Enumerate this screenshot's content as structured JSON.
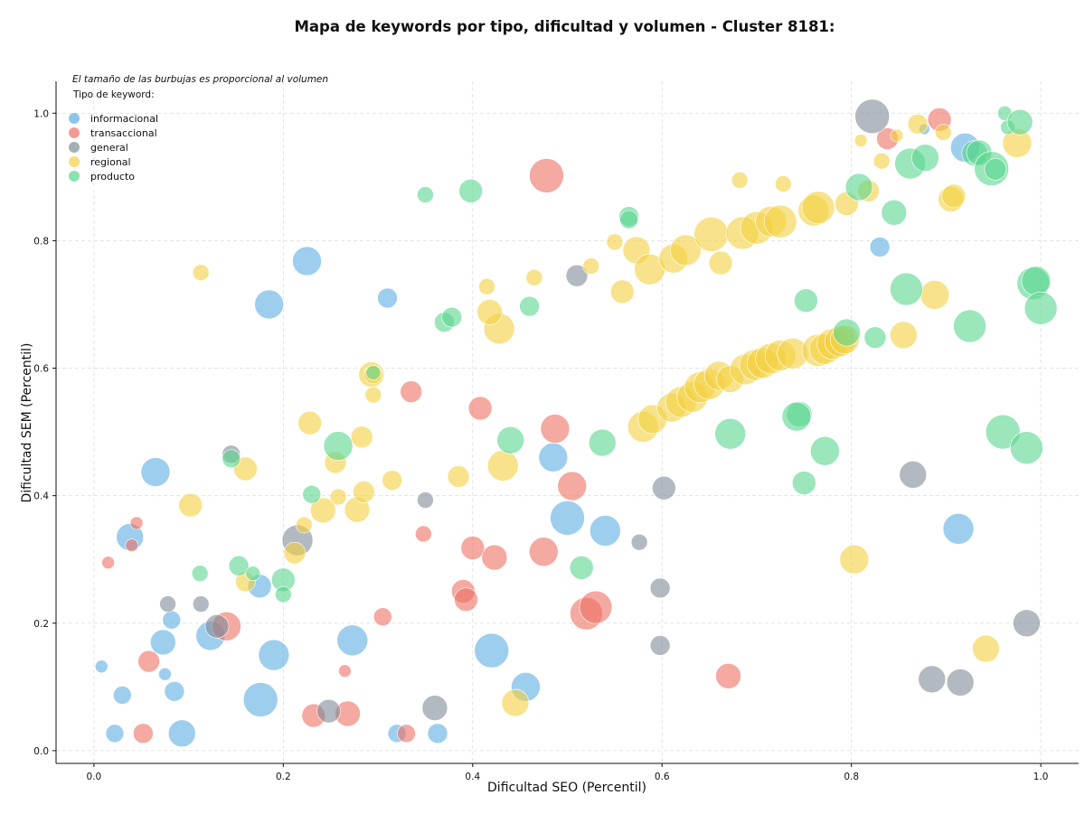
{
  "chart_data": {
    "type": "scatter",
    "title": "Mapa de keywords por tipo, dificultad y volumen - Cluster 8181:",
    "xlabel": "Dificultad SEO (Percentil)",
    "ylabel": "Dificultad SEM (Percentil)",
    "xlim": [
      -0.04,
      1.04
    ],
    "ylim": [
      -0.02,
      1.05
    ],
    "xticks": [
      0.0,
      0.2,
      0.4,
      0.6,
      0.8,
      1.0
    ],
    "xtick_labels": [
      "0.0",
      "0.2",
      "0.4",
      "0.6",
      "0.8",
      "1.0"
    ],
    "yticks": [
      0.0,
      0.2,
      0.4,
      0.6,
      0.8,
      1.0
    ],
    "ytick_labels": [
      "0.0",
      "0.2",
      "0.4",
      "0.6",
      "0.8",
      "1.0"
    ],
    "grid": true,
    "size_note": "El tamaño de las burbujas es proporcional al volumen",
    "legend_title": "Tipo de keyword:",
    "legend_position": "top-left",
    "series": [
      {
        "name": "informacional",
        "color": "#5DADE2",
        "points": [
          [
            0.225,
            0.768,
            16
          ],
          [
            0.185,
            0.7,
            16
          ],
          [
            0.31,
            0.71,
            11
          ],
          [
            0.065,
            0.437,
            16
          ],
          [
            0.038,
            0.335,
            15
          ],
          [
            0.175,
            0.258,
            13
          ],
          [
            0.073,
            0.17,
            14
          ],
          [
            0.082,
            0.205,
            10
          ],
          [
            0.123,
            0.18,
            16
          ],
          [
            0.075,
            0.12,
            7
          ],
          [
            0.085,
            0.093,
            11
          ],
          [
            0.03,
            0.087,
            10
          ],
          [
            0.008,
            0.132,
            7
          ],
          [
            0.022,
            0.027,
            10
          ],
          [
            0.093,
            0.027,
            15
          ],
          [
            0.176,
            0.08,
            19
          ],
          [
            0.19,
            0.15,
            17
          ],
          [
            0.273,
            0.173,
            17
          ],
          [
            0.32,
            0.027,
            10
          ],
          [
            0.363,
            0.027,
            11
          ],
          [
            0.485,
            0.46,
            16
          ],
          [
            0.5,
            0.365,
            19
          ],
          [
            0.54,
            0.345,
            17
          ],
          [
            0.42,
            0.157,
            19
          ],
          [
            0.456,
            0.1,
            16
          ],
          [
            0.83,
            0.79,
            11
          ],
          [
            0.913,
            0.348,
            17
          ],
          [
            0.92,
            0.946,
            16
          ],
          [
            0.877,
            0.975,
            6
          ]
        ]
      },
      {
        "name": "transaccional",
        "color": "#EC7063",
        "points": [
          [
            0.478,
            0.902,
            19
          ],
          [
            0.335,
            0.563,
            12
          ],
          [
            0.408,
            0.537,
            13
          ],
          [
            0.487,
            0.505,
            16
          ],
          [
            0.505,
            0.415,
            16
          ],
          [
            0.045,
            0.357,
            7
          ],
          [
            0.04,
            0.322,
            7
          ],
          [
            0.015,
            0.295,
            7
          ],
          [
            0.14,
            0.195,
            16
          ],
          [
            0.058,
            0.14,
            12
          ],
          [
            0.052,
            0.027,
            11
          ],
          [
            0.232,
            0.055,
            13
          ],
          [
            0.268,
            0.058,
            14
          ],
          [
            0.265,
            0.125,
            7
          ],
          [
            0.305,
            0.21,
            10
          ],
          [
            0.348,
            0.34,
            9
          ],
          [
            0.4,
            0.318,
            13
          ],
          [
            0.423,
            0.303,
            14
          ],
          [
            0.475,
            0.312,
            16
          ],
          [
            0.39,
            0.25,
            13
          ],
          [
            0.393,
            0.237,
            13
          ],
          [
            0.52,
            0.215,
            18
          ],
          [
            0.53,
            0.225,
            18
          ],
          [
            0.67,
            0.117,
            14
          ],
          [
            0.33,
            0.027,
            10
          ],
          [
            0.838,
            0.96,
            12
          ],
          [
            0.893,
            0.99,
            13
          ]
        ]
      },
      {
        "name": "general",
        "color": "#808B96",
        "points": [
          [
            0.822,
            0.995,
            19
          ],
          [
            0.51,
            0.745,
            12
          ],
          [
            0.145,
            0.465,
            10
          ],
          [
            0.35,
            0.393,
            9
          ],
          [
            0.078,
            0.23,
            9
          ],
          [
            0.113,
            0.23,
            9
          ],
          [
            0.215,
            0.33,
            17
          ],
          [
            0.13,
            0.195,
            13
          ],
          [
            0.248,
            0.062,
            13
          ],
          [
            0.36,
            0.067,
            14
          ],
          [
            0.576,
            0.327,
            9
          ],
          [
            0.602,
            0.412,
            13
          ],
          [
            0.598,
            0.255,
            11
          ],
          [
            0.598,
            0.165,
            11
          ],
          [
            0.865,
            0.433,
            15
          ],
          [
            0.985,
            0.2,
            15
          ],
          [
            0.885,
            0.112,
            15
          ],
          [
            0.915,
            0.107,
            15
          ]
        ]
      },
      {
        "name": "regional",
        "color": "#F4D03F",
        "points": [
          [
            0.113,
            0.75,
            9
          ],
          [
            0.102,
            0.385,
            13
          ],
          [
            0.16,
            0.442,
            13
          ],
          [
            0.228,
            0.514,
            13
          ],
          [
            0.293,
            0.59,
            14
          ],
          [
            0.295,
            0.558,
            9
          ],
          [
            0.283,
            0.492,
            12
          ],
          [
            0.255,
            0.452,
            12
          ],
          [
            0.258,
            0.398,
            9
          ],
          [
            0.242,
            0.377,
            14
          ],
          [
            0.222,
            0.354,
            9
          ],
          [
            0.212,
            0.31,
            12
          ],
          [
            0.278,
            0.378,
            14
          ],
          [
            0.285,
            0.406,
            12
          ],
          [
            0.315,
            0.424,
            11
          ],
          [
            0.16,
            0.265,
            11
          ],
          [
            0.385,
            0.43,
            12
          ],
          [
            0.432,
            0.447,
            17
          ],
          [
            0.428,
            0.662,
            17
          ],
          [
            0.415,
            0.728,
            9
          ],
          [
            0.418,
            0.688,
            14
          ],
          [
            0.465,
            0.742,
            9
          ],
          [
            0.525,
            0.76,
            9
          ],
          [
            0.55,
            0.798,
            9
          ],
          [
            0.558,
            0.72,
            13
          ],
          [
            0.573,
            0.785,
            15
          ],
          [
            0.587,
            0.755,
            17
          ],
          [
            0.612,
            0.772,
            16
          ],
          [
            0.625,
            0.785,
            17
          ],
          [
            0.652,
            0.81,
            19
          ],
          [
            0.662,
            0.765,
            13
          ],
          [
            0.682,
            0.895,
            9
          ],
          [
            0.685,
            0.812,
            18
          ],
          [
            0.7,
            0.82,
            18
          ],
          [
            0.715,
            0.83,
            17
          ],
          [
            0.725,
            0.83,
            18
          ],
          [
            0.728,
            0.889,
            9
          ],
          [
            0.76,
            0.847,
            17
          ],
          [
            0.765,
            0.852,
            18
          ],
          [
            0.795,
            0.858,
            13
          ],
          [
            0.818,
            0.878,
            12
          ],
          [
            0.81,
            0.957,
            7
          ],
          [
            0.832,
            0.925,
            9
          ],
          [
            0.848,
            0.965,
            7
          ],
          [
            0.87,
            0.983,
            11
          ],
          [
            0.897,
            0.97,
            9
          ],
          [
            0.905,
            0.865,
            14
          ],
          [
            0.908,
            0.87,
            13
          ],
          [
            0.975,
            0.953,
            16
          ],
          [
            0.58,
            0.508,
            17
          ],
          [
            0.59,
            0.52,
            16
          ],
          [
            0.61,
            0.538,
            16
          ],
          [
            0.62,
            0.547,
            17
          ],
          [
            0.632,
            0.555,
            17
          ],
          [
            0.64,
            0.57,
            17
          ],
          [
            0.65,
            0.575,
            17
          ],
          [
            0.66,
            0.588,
            16
          ],
          [
            0.672,
            0.583,
            15
          ],
          [
            0.688,
            0.598,
            17
          ],
          [
            0.698,
            0.605,
            17
          ],
          [
            0.706,
            0.608,
            17
          ],
          [
            0.715,
            0.615,
            17
          ],
          [
            0.725,
            0.62,
            17
          ],
          [
            0.738,
            0.623,
            17
          ],
          [
            0.765,
            0.628,
            18
          ],
          [
            0.772,
            0.63,
            17
          ],
          [
            0.78,
            0.638,
            17
          ],
          [
            0.788,
            0.642,
            17
          ],
          [
            0.793,
            0.645,
            16
          ],
          [
            0.855,
            0.652,
            15
          ],
          [
            0.888,
            0.715,
            16
          ],
          [
            0.803,
            0.3,
            16
          ],
          [
            0.942,
            0.16,
            15
          ],
          [
            0.445,
            0.075,
            15
          ],
          [
            0.295,
            0.59,
            10
          ]
        ]
      },
      {
        "name": "producto",
        "color": "#58D68D",
        "points": [
          [
            0.35,
            0.872,
            9
          ],
          [
            0.398,
            0.878,
            13
          ],
          [
            0.565,
            0.838,
            11
          ],
          [
            0.565,
            0.833,
            10
          ],
          [
            0.46,
            0.697,
            11
          ],
          [
            0.37,
            0.672,
            11
          ],
          [
            0.378,
            0.68,
            11
          ],
          [
            0.258,
            0.478,
            16
          ],
          [
            0.145,
            0.458,
            10
          ],
          [
            0.295,
            0.593,
            8
          ],
          [
            0.23,
            0.402,
            10
          ],
          [
            0.112,
            0.278,
            9
          ],
          [
            0.153,
            0.29,
            11
          ],
          [
            0.168,
            0.278,
            8
          ],
          [
            0.2,
            0.268,
            13
          ],
          [
            0.2,
            0.245,
            9
          ],
          [
            0.44,
            0.487,
            15
          ],
          [
            0.537,
            0.483,
            15
          ],
          [
            0.515,
            0.287,
            13
          ],
          [
            0.672,
            0.497,
            17
          ],
          [
            0.745,
            0.528,
            14
          ],
          [
            0.742,
            0.524,
            16
          ],
          [
            0.752,
            0.706,
            13
          ],
          [
            0.772,
            0.47,
            16
          ],
          [
            0.75,
            0.42,
            13
          ],
          [
            0.795,
            0.656,
            15
          ],
          [
            0.825,
            0.648,
            12
          ],
          [
            0.808,
            0.884,
            15
          ],
          [
            0.845,
            0.844,
            14
          ],
          [
            0.858,
            0.724,
            18
          ],
          [
            0.862,
            0.921,
            17
          ],
          [
            0.878,
            0.93,
            15
          ],
          [
            0.925,
            0.666,
            18
          ],
          [
            0.93,
            0.937,
            14
          ],
          [
            0.935,
            0.938,
            14
          ],
          [
            0.948,
            0.913,
            19
          ],
          [
            0.952,
            0.912,
            12
          ],
          [
            0.962,
            1.0,
            8
          ],
          [
            0.965,
            0.978,
            8
          ],
          [
            0.978,
            0.986,
            14
          ],
          [
            0.96,
            0.5,
            19
          ],
          [
            0.985,
            0.475,
            18
          ],
          [
            0.992,
            0.733,
            18
          ],
          [
            0.995,
            0.737,
            16
          ],
          [
            1.0,
            0.694,
            18
          ]
        ]
      }
    ]
  }
}
